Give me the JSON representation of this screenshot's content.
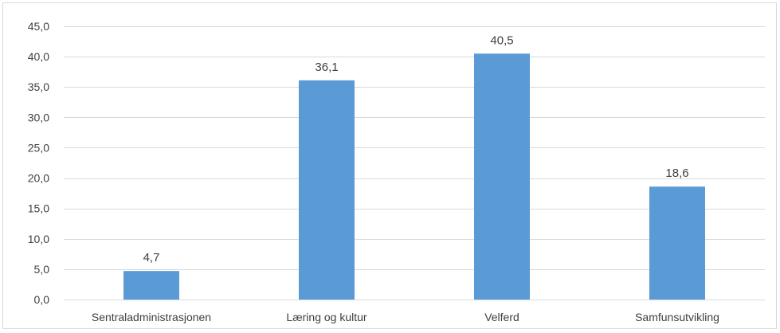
{
  "chart_data": {
    "type": "bar",
    "title": "",
    "xlabel": "",
    "ylabel": "",
    "categories": [
      "Sentraladministrasjonen",
      "Læring og kultur",
      "Velferd",
      "Samfunsutvikling"
    ],
    "values": [
      4.7,
      36.1,
      40.5,
      18.6
    ],
    "value_labels": [
      "4,7",
      "36,1",
      "40,5",
      "18,6"
    ],
    "ylim": [
      0,
      45
    ],
    "yticks": [
      0,
      5,
      10,
      15,
      20,
      25,
      30,
      35,
      40,
      45
    ],
    "ytick_labels": [
      "0,0",
      "5,0",
      "10,0",
      "15,0",
      "20,0",
      "25,0",
      "30,0",
      "35,0",
      "40,0",
      "45,0"
    ],
    "grid": true,
    "legend": "none",
    "bar_color": "#5b9bd5",
    "grid_color": "#d9d9d9"
  }
}
